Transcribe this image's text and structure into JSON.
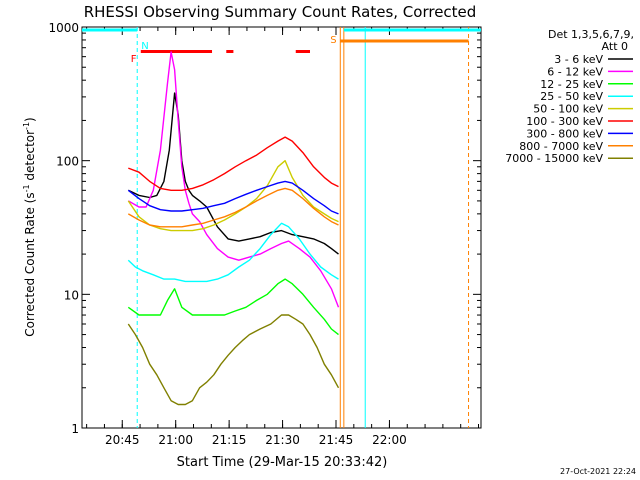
{
  "chart_data": {
    "type": "line",
    "title": "RHESSI Observing Summary Count Rates, Corrected",
    "ylabel_main": "Corrected Count Rate (s",
    "ylabel_sup1": "-1",
    "ylabel_mid": " detector",
    "ylabel_sup2": "-1",
    "ylabel_end": ")",
    "xlabel": "Start Time (29-Mar-15 20:33:42)",
    "x_unit": "minutes since 20:33:42",
    "x_range": [
      0,
      112
    ],
    "y_scale": "log",
    "y_range": [
      1,
      1000
    ],
    "x_ticks": [
      {
        "x": 11.3,
        "label": "20:45"
      },
      {
        "x": 26.3,
        "label": "21:00"
      },
      {
        "x": 41.3,
        "label": "21:15"
      },
      {
        "x": 56.3,
        "label": "21:30"
      },
      {
        "x": 71.3,
        "label": "21:45"
      },
      {
        "x": 86.3,
        "label": "22:00"
      }
    ],
    "y_ticks": [
      {
        "y": 1,
        "label": "1"
      },
      {
        "y": 10,
        "label": "10"
      },
      {
        "y": 100,
        "label": "100"
      },
      {
        "y": 1000,
        "label": "1000"
      }
    ],
    "legend_header": [
      "Det 1,3,5,6,7,9,",
      "Att 0"
    ],
    "legend_position": "right",
    "timestamp": "27-Oct-2021 22:24",
    "series": [
      {
        "name": "3 - 6 keV",
        "color": "#000000",
        "x": [
          13,
          16,
          19,
          21,
          23,
          24.5,
          26,
          27,
          28,
          29,
          30,
          31,
          33,
          35,
          38,
          41,
          44,
          47,
          50,
          53,
          56,
          59,
          62,
          65,
          68,
          70,
          72
        ],
        "y": [
          60,
          55,
          53,
          55,
          70,
          120,
          320,
          220,
          100,
          70,
          60,
          55,
          50,
          45,
          32,
          26,
          25,
          26,
          27,
          29,
          30,
          28,
          27,
          26,
          24,
          22,
          20
        ]
      },
      {
        "name": "6 - 12 keV",
        "color": "#ff00ff",
        "x": [
          13,
          16,
          18,
          20,
          22,
          24,
          25,
          26,
          27,
          28,
          29,
          30,
          31,
          33,
          35,
          38,
          41,
          44,
          47,
          50,
          53,
          56,
          58,
          61,
          64,
          67,
          70,
          72
        ],
        "y": [
          50,
          45,
          45,
          60,
          120,
          380,
          650,
          480,
          200,
          90,
          60,
          48,
          40,
          35,
          28,
          22,
          19,
          18,
          19,
          20,
          22,
          24,
          25,
          22,
          19,
          15,
          11,
          8
        ]
      },
      {
        "name": "12 - 25 keV",
        "color": "#00ff00",
        "x": [
          13,
          16,
          19,
          22,
          24,
          26,
          28,
          31,
          34,
          37,
          40,
          43,
          46,
          49,
          52,
          55,
          57,
          59,
          62,
          65,
          68,
          70,
          72
        ],
        "y": [
          8,
          7,
          7,
          7,
          9,
          11,
          8,
          7,
          7,
          7,
          7,
          7.5,
          8,
          9,
          10,
          12,
          13,
          12,
          10,
          8,
          6.5,
          5.5,
          5
        ]
      },
      {
        "name": "25 - 50 keV",
        "color": "#00ffff",
        "x": [
          13,
          15,
          17,
          20,
          23,
          26,
          29,
          32,
          35,
          38,
          41,
          44,
          47,
          50,
          53,
          56,
          58,
          61,
          64,
          67,
          70,
          72
        ],
        "y": [
          18,
          16,
          15,
          14,
          13,
          13,
          12.5,
          12.5,
          12.5,
          13,
          14,
          16,
          18,
          22,
          28,
          34,
          32,
          26,
          20,
          16,
          14,
          13
        ]
      },
      {
        "name": "50 - 100 keV",
        "color": "#cccc00",
        "x": [
          13,
          16,
          19,
          22,
          25,
          28,
          31,
          34,
          37,
          40,
          43,
          46,
          49,
          52,
          55,
          57,
          59,
          62,
          65,
          68,
          70,
          72
        ],
        "y": [
          50,
          38,
          33,
          31,
          30,
          30,
          30,
          31,
          33,
          36,
          40,
          45,
          52,
          65,
          90,
          100,
          75,
          55,
          45,
          40,
          37,
          35
        ]
      },
      {
        "name": "100 - 300 keV",
        "color": "#ff0000",
        "x": [
          13,
          16,
          19,
          22,
          25,
          28,
          31,
          34,
          37,
          40,
          43,
          46,
          49,
          52,
          55,
          57,
          59,
          62,
          65,
          68,
          70,
          72
        ],
        "y": [
          88,
          82,
          70,
          62,
          60,
          60,
          62,
          66,
          72,
          80,
          90,
          100,
          110,
          125,
          140,
          150,
          140,
          115,
          90,
          75,
          68,
          64
        ]
      },
      {
        "name": "300 - 800 keV",
        "color": "#0000ff",
        "x": [
          13,
          16,
          19,
          22,
          25,
          28,
          31,
          34,
          37,
          40,
          43,
          46,
          49,
          52,
          55,
          57,
          59,
          62,
          65,
          68,
          70,
          72
        ],
        "y": [
          60,
          52,
          46,
          43,
          42,
          42,
          43,
          44,
          46,
          48,
          52,
          56,
          60,
          64,
          68,
          70,
          68,
          60,
          52,
          46,
          42,
          40
        ]
      },
      {
        "name": "800 - 7000 keV",
        "color": "#ff8000",
        "x": [
          13,
          16,
          19,
          22,
          25,
          28,
          31,
          34,
          37,
          40,
          43,
          46,
          49,
          52,
          55,
          57,
          59,
          62,
          65,
          68,
          70,
          72
        ],
        "y": [
          40,
          36,
          33,
          32,
          32,
          32,
          33,
          34,
          36,
          38,
          41,
          45,
          50,
          55,
          60,
          62,
          60,
          52,
          44,
          38,
          35,
          33
        ]
      },
      {
        "name": "7000 - 15000 keV",
        "color": "#808000",
        "x": [
          13,
          15,
          17,
          19,
          21,
          23,
          25,
          27,
          29,
          31,
          33,
          35,
          37,
          39,
          41,
          43,
          45,
          47,
          50,
          53,
          56,
          58,
          60,
          62,
          64,
          66,
          68,
          70,
          72
        ],
        "y": [
          6,
          5,
          4,
          3,
          2.5,
          2,
          1.6,
          1.5,
          1.5,
          1.6,
          2,
          2.2,
          2.5,
          3,
          3.5,
          4,
          4.5,
          5,
          5.5,
          6,
          7,
          7,
          6.5,
          6,
          5,
          4,
          3,
          2.5,
          2
        ]
      }
    ],
    "attenuator_segments": [
      {
        "x": [
          0,
          15.5
        ],
        "y": 800,
        "color": "#00ffff"
      },
      {
        "x": 73.5,
        "y": 800,
        "color": "#00ffff"
      }
    ],
    "saa_segments": [
      {
        "x": [
          72.5,
          108.5
        ],
        "y": 1000,
        "color": "#ff8000"
      }
    ],
    "flare_segments": [
      {
        "x": [
          16.5,
          36.5
        ],
        "y": 650
      },
      {
        "x": [
          40.5,
          42.5
        ],
        "y": 650
      },
      {
        "x": [
          60,
          64
        ],
        "y": 650
      }
    ],
    "vlines": [
      {
        "x": 15.5,
        "color": "#00ffff",
        "dash": true
      },
      {
        "x": 72.5,
        "color": "#ff8000",
        "dash": false
      },
      {
        "x": 73.5,
        "color": "#ff8000",
        "dash": false
      },
      {
        "x": 79.5,
        "color": "#00ffff",
        "dash": false
      },
      {
        "x": 108.5,
        "color": "#ff8000",
        "dash": true
      }
    ],
    "markers": [
      {
        "text": "N",
        "x": 15.5,
        "color": "#00ffff"
      },
      {
        "text": "F",
        "x": 16.5,
        "color": "#ff0000"
      },
      {
        "text": "S",
        "x": 72.5,
        "color": "#ff8000"
      }
    ]
  }
}
